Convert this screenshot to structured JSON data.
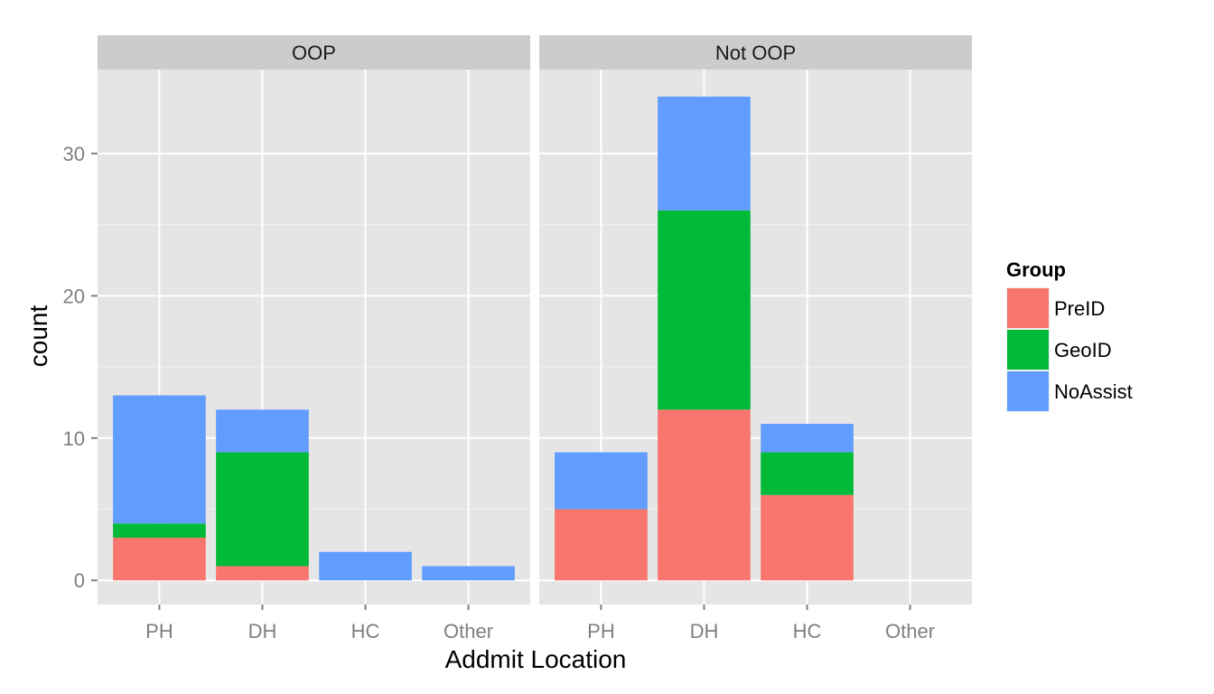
{
  "chart_data": {
    "type": "bar",
    "stacked": true,
    "facets": [
      "OOP",
      "Not OOP"
    ],
    "categories": [
      "PH",
      "DH",
      "HC",
      "Other"
    ],
    "xlabel": "Addmit Location",
    "ylabel": "count",
    "ylim": [
      -1.7,
      35.9
    ],
    "yticks": [
      0,
      10,
      20,
      30
    ],
    "grid": true,
    "legend": {
      "title": "Group",
      "placement": "right"
    },
    "series": [
      {
        "name": "PreID",
        "color": "#F8766D",
        "values": {
          "OOP": [
            3,
            1,
            0,
            0
          ],
          "Not OOP": [
            5,
            12,
            6,
            0
          ]
        }
      },
      {
        "name": "GeoID",
        "color": "#00BA38",
        "values": {
          "OOP": [
            1,
            8,
            0,
            0
          ],
          "Not OOP": [
            0,
            14,
            3,
            0
          ]
        }
      },
      {
        "name": "NoAssist",
        "color": "#619CFF",
        "values": {
          "OOP": [
            9,
            3,
            2,
            1
          ],
          "Not OOP": [
            4,
            8,
            2,
            0
          ]
        }
      }
    ],
    "colors": {
      "panel_background": "#E5E5E5",
      "strip_background": "#CCCCCC",
      "grid_major": "#FFFFFF",
      "grid_minor": "#F2F2F2",
      "tick_text": "#7F7F7F"
    }
  }
}
